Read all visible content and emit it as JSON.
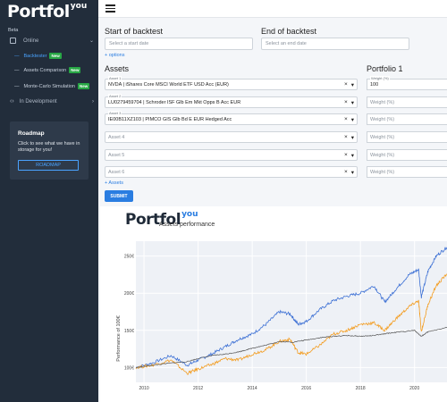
{
  "brand": {
    "name": "Portfol",
    "suffix": "you"
  },
  "sidebar": {
    "beta": "Beta",
    "online": "Online",
    "items": [
      {
        "label": "Backtester",
        "badge": "New",
        "active": true
      },
      {
        "label": "Assets Comparison",
        "badge": "New",
        "active": false
      },
      {
        "label": "Monte-Carlo Simulation",
        "badge": "New",
        "active": false
      }
    ],
    "in_development": "In Development",
    "roadmap": {
      "title": "Roadmap",
      "text": "Click to see what we have in storage for you!",
      "button": "ROADMAP"
    }
  },
  "form": {
    "start_label": "Start of backtest",
    "start_placeholder": "Select a start date",
    "end_label": "End of backtest",
    "end_placeholder": "Select an end date",
    "options_link": "+ options",
    "assets_title": "Assets",
    "portfolio_title": "Portfolio 1",
    "assets": [
      {
        "label": "Asset 1",
        "value": "NVDA | iShares Core MSCI World ETF USD Acc (EUR)",
        "weight": "100"
      },
      {
        "label": "Asset 2",
        "value": "LU0279459704 | Schroder ISF Glb Em Mkt Opps B Acc EUR",
        "weight": ""
      },
      {
        "label": "Asset 3",
        "value": "IE00B11XZ103 | PIMCO GIS Glb Bd E EUR Hedged Acc",
        "weight": ""
      },
      {
        "label": "",
        "value": "Asset 4",
        "weight": ""
      },
      {
        "label": "",
        "value": "Asset 5",
        "weight": ""
      },
      {
        "label": "",
        "value": "Asset 6",
        "weight": ""
      }
    ],
    "weight_label": "Weight (%)",
    "weight_placeholder": "Weight (%)",
    "clear_icon": "×",
    "dropdown_icon": "▾",
    "add_assets_link": "+ Assets",
    "submit": "SUBMIT"
  },
  "chart_data": {
    "type": "line",
    "title": "Assets performance",
    "ylabel": "Performance of 100€",
    "xlabel": "",
    "x_ticks": [
      "2010",
      "2012",
      "2014",
      "2016",
      "2018",
      "2020"
    ],
    "y_ticks": [
      "100€",
      "150€",
      "200€",
      "250€"
    ],
    "ylim": [
      80,
      270
    ],
    "xlim": [
      2009.7,
      2021.2
    ],
    "grid": true,
    "series": [
      {
        "color": "#3b6fd4",
        "x": [
          2009.7,
          2010.3,
          2011.0,
          2011.6,
          2012.0,
          2012.5,
          2013.0,
          2013.5,
          2014.0,
          2014.5,
          2015.0,
          2015.4,
          2015.7,
          2016.0,
          2016.5,
          2017.0,
          2017.5,
          2018.0,
          2018.5,
          2018.9,
          2019.3,
          2019.8,
          2020.15,
          2020.25,
          2020.5,
          2020.8,
          2021.2
        ],
        "values": [
          100,
          106,
          116,
          103,
          110,
          118,
          128,
          138,
          145,
          158,
          175,
          172,
          158,
          162,
          178,
          190,
          196,
          200,
          210,
          188,
          205,
          225,
          232,
          195,
          230,
          250,
          262
        ]
      },
      {
        "color": "#f39c1f",
        "x": [
          2009.7,
          2010.3,
          2011.0,
          2011.6,
          2012.0,
          2012.5,
          2013.0,
          2013.5,
          2014.0,
          2014.5,
          2015.0,
          2015.4,
          2015.7,
          2016.0,
          2016.5,
          2017.0,
          2017.5,
          2018.0,
          2018.5,
          2018.9,
          2019.3,
          2019.8,
          2020.15,
          2020.25,
          2020.5,
          2020.8,
          2021.2
        ],
        "values": [
          100,
          103,
          110,
          92,
          98,
          104,
          112,
          110,
          118,
          124,
          135,
          138,
          120,
          118,
          130,
          145,
          150,
          158,
          160,
          150,
          165,
          182,
          190,
          148,
          185,
          210,
          226
        ]
      },
      {
        "color": "#555555",
        "x": [
          2009.7,
          2010.3,
          2011.0,
          2011.6,
          2012.0,
          2012.5,
          2013.0,
          2013.5,
          2014.0,
          2014.5,
          2015.0,
          2015.5,
          2016.0,
          2016.5,
          2017.0,
          2017.5,
          2018.0,
          2018.5,
          2019.0,
          2019.5,
          2020.0,
          2020.25,
          2020.5,
          2021.2
        ],
        "values": [
          100,
          103,
          106,
          108,
          112,
          116,
          118,
          121,
          126,
          130,
          135,
          134,
          137,
          140,
          142,
          143,
          142,
          143,
          146,
          148,
          150,
          142,
          148,
          154
        ]
      }
    ]
  }
}
